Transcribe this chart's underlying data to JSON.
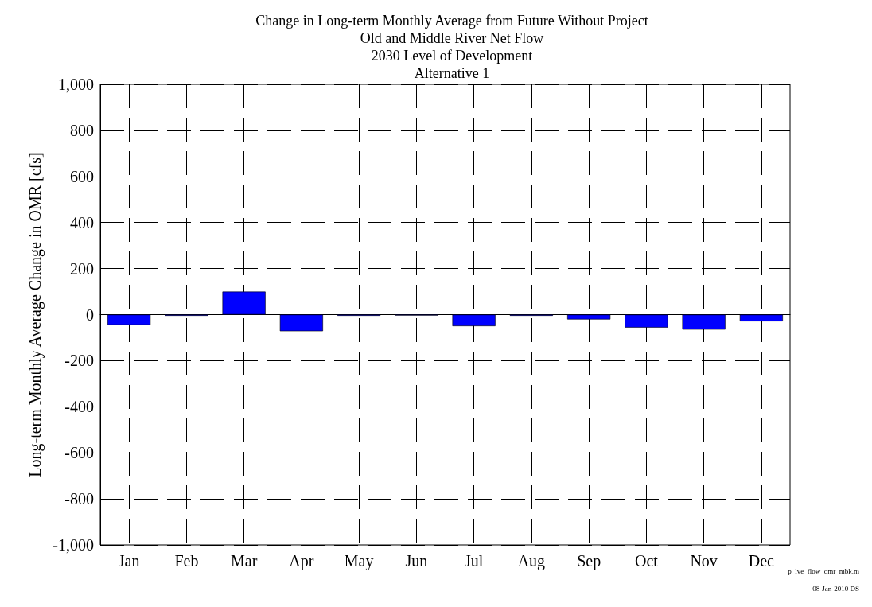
{
  "chart_data": {
    "type": "bar",
    "title": "Change in Long-term Monthly Average from Future Without Project\nOld and Middle River Net Flow\n2030 Level of Development\nAlternative 1",
    "ylabel": "Long-term Monthly Average Change in OMR [cfs]",
    "categories": [
      "Jan",
      "Feb",
      "Mar",
      "Apr",
      "May",
      "Jun",
      "Jul",
      "Aug",
      "Sep",
      "Oct",
      "Nov",
      "Dec"
    ],
    "values": [
      -45,
      -5,
      100,
      -72,
      -5,
      -4,
      -50,
      -5,
      -21,
      -56,
      -65,
      -29
    ],
    "color": "#0000ff",
    "ylim": [
      -1000,
      1000
    ],
    "yticks": [
      {
        "value": -1000,
        "label": "-1,000"
      },
      -800,
      -600,
      -400,
      -200,
      0,
      200,
      400,
      600,
      800,
      {
        "value": 1000,
        "label": "1,000"
      }
    ],
    "grid": true,
    "annotations": [
      "p_lve_flow_omr_mbk.m",
      "08-Jan-2010 DS"
    ]
  }
}
